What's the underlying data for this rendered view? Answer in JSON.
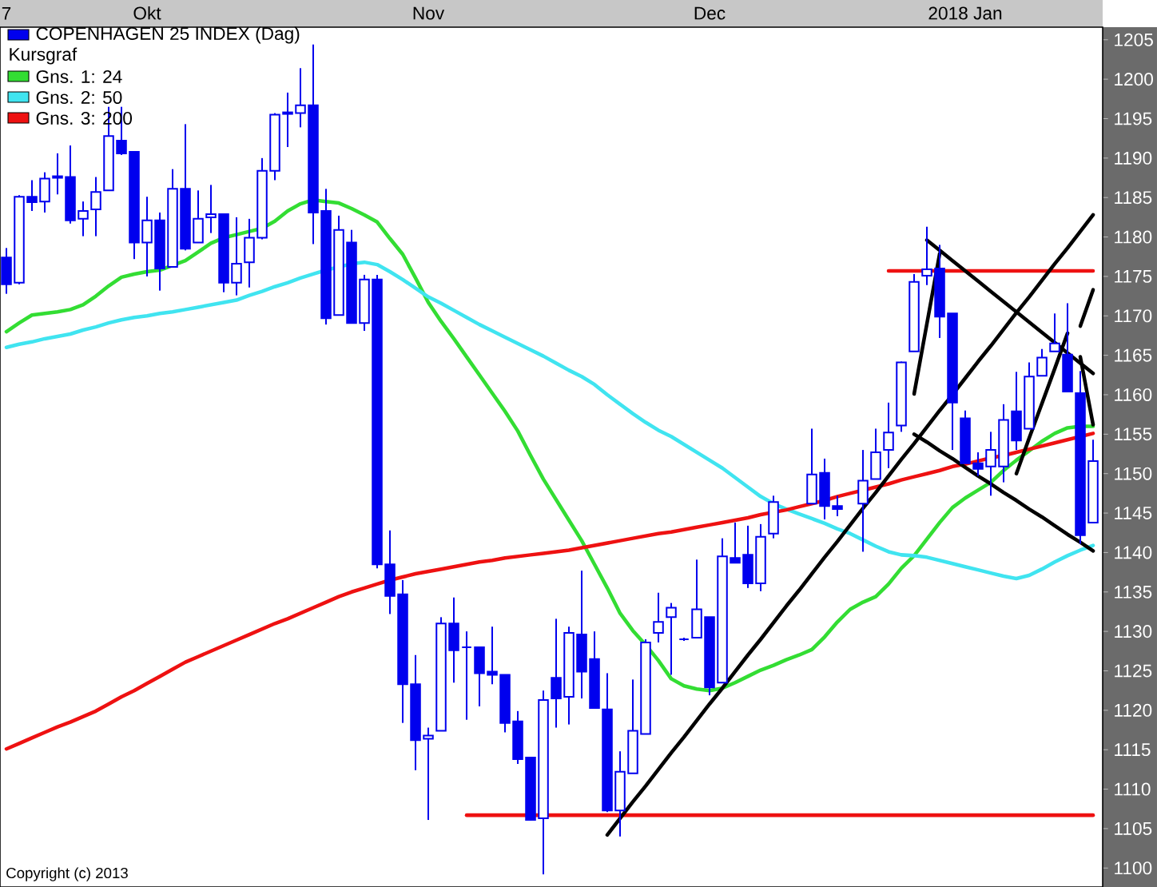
{
  "chart_data": {
    "type": "candlestick",
    "title": "COPENHAGEN 25 INDEX (Dag)",
    "legend_title": "Kursgraf",
    "color": "#0000ee",
    "legend": "top left",
    "annotations": [
      "Copyright (c) 2013"
    ],
    "ylim": [
      1097.6,
      1206.6
    ],
    "yticks": [
      1100,
      1105,
      1110,
      1115,
      1120,
      1125,
      1130,
      1135,
      1140,
      1145,
      1150,
      1155,
      1160,
      1165,
      1170,
      1175,
      1180,
      1185,
      1190,
      1195,
      1200,
      1205
    ],
    "categories": [
      "7",
      null,
      null,
      null,
      null,
      null,
      null,
      null,
      null,
      null,
      null,
      "Okt",
      null,
      null,
      null,
      null,
      null,
      null,
      null,
      null,
      null,
      null,
      null,
      null,
      null,
      null,
      null,
      null,
      null,
      null,
      null,
      null,
      null,
      "Nov",
      null,
      null,
      null,
      null,
      null,
      null,
      null,
      null,
      null,
      null,
      null,
      null,
      null,
      null,
      null,
      null,
      null,
      null,
      null,
      null,
      null,
      "Dec",
      null,
      null,
      null,
      null,
      null,
      null,
      null,
      null,
      null,
      null,
      null,
      null,
      null,
      null,
      null,
      null,
      null,
      null,
      null,
      "2018 Jan",
      null,
      null,
      null,
      null,
      null,
      null,
      null,
      null,
      null,
      null
    ],
    "ohlc": [
      [
        1177.4,
        1178.6,
        1172.8,
        1174.0
      ],
      [
        1174.2,
        1185.3,
        1174.0,
        1185.1
      ],
      [
        1185.1,
        1187.2,
        1183.3,
        1184.4
      ],
      [
        1184.5,
        1188.2,
        1183.1,
        1187.4
      ],
      [
        1187.5,
        1190.6,
        1185.4,
        1187.7
      ],
      [
        1187.6,
        1191.6,
        1181.7,
        1182.1
      ],
      [
        1182.3,
        1184.5,
        1180.1,
        1183.3
      ],
      [
        1183.5,
        1187.6,
        1180.1,
        1185.7
      ],
      [
        1185.9,
        1196.5,
        1185.9,
        1192.8
      ],
      [
        1192.2,
        1196.5,
        1190.4,
        1190.6
      ],
      [
        1190.8,
        1190.8,
        1177.2,
        1179.3
      ],
      [
        1179.3,
        1185.1,
        1175.0,
        1182.1
      ],
      [
        1182.1,
        1183.1,
        1173.2,
        1176.0
      ],
      [
        1176.2,
        1188.6,
        1176.2,
        1186.1
      ],
      [
        1186.1,
        1194.3,
        1178.3,
        1178.5
      ],
      [
        1179.3,
        1185.9,
        1179.3,
        1182.3
      ],
      [
        1182.5,
        1186.6,
        1180.5,
        1182.9
      ],
      [
        1182.9,
        1182.9,
        1173.0,
        1174.2
      ],
      [
        1174.2,
        1182.5,
        1172.6,
        1176.6
      ],
      [
        1176.8,
        1182.3,
        1173.6,
        1179.9
      ],
      [
        1179.9,
        1190.0,
        1179.7,
        1188.4
      ],
      [
        1188.4,
        1195.7,
        1187.2,
        1195.5
      ],
      [
        1195.6,
        1198.3,
        1191.4,
        1195.8
      ],
      [
        1195.7,
        1201.4,
        1193.9,
        1196.7
      ],
      [
        1196.7,
        1204.4,
        1179.1,
        1183.1
      ],
      [
        1183.3,
        1186.1,
        1168.9,
        1169.7
      ],
      [
        1170.1,
        1182.7,
        1170.1,
        1180.9
      ],
      [
        1179.3,
        1180.9,
        1169.1,
        1169.1
      ],
      [
        1169.1,
        1175.2,
        1168.1,
        1174.6
      ],
      [
        1174.6,
        1175.2,
        1138.0,
        1138.5
      ],
      [
        1138.5,
        1142.8,
        1132.2,
        1134.5
      ],
      [
        1134.7,
        1136.5,
        1118.4,
        1123.3
      ],
      [
        1123.3,
        1127.0,
        1112.4,
        1116.2
      ],
      [
        1116.4,
        1117.8,
        1106.1,
        1116.8
      ],
      [
        1117.4,
        1131.8,
        1117.4,
        1131.0
      ],
      [
        1131.0,
        1134.3,
        1123.5,
        1127.6
      ],
      [
        1128.0,
        1130.0,
        1118.8,
        1128.0
      ],
      [
        1128.0,
        1128.0,
        1120.5,
        1124.7
      ],
      [
        1124.9,
        1130.6,
        1123.3,
        1124.5
      ],
      [
        1124.5,
        1124.5,
        1117.2,
        1118.4
      ],
      [
        1118.6,
        1119.9,
        1113.2,
        1113.8
      ],
      [
        1114.0,
        1114.0,
        1106.0,
        1106.1
      ],
      [
        1106.3,
        1122.5,
        1099.2,
        1121.3
      ],
      [
        1124.1,
        1131.6,
        1117.8,
        1121.5
      ],
      [
        1121.7,
        1130.6,
        1118.2,
        1129.8
      ],
      [
        1129.6,
        1137.7,
        1121.5,
        1124.9
      ],
      [
        1126.5,
        1130.0,
        1120.3,
        1120.3
      ],
      [
        1120.1,
        1124.7,
        1107.1,
        1107.3
      ],
      [
        1107.3,
        1114.8,
        1104.0,
        1112.2
      ],
      [
        1112.0,
        1123.9,
        1112.0,
        1117.4
      ],
      [
        1117.0,
        1129.0,
        1117.0,
        1128.6
      ],
      [
        1129.8,
        1134.9,
        1128.6,
        1131.2
      ],
      [
        1131.8,
        1133.6,
        1124.5,
        1133.0
      ],
      [
        1129.0,
        1129.2,
        1128.8,
        1129.0
      ],
      [
        1129.2,
        1139.1,
        1129.2,
        1132.8
      ],
      [
        1131.8,
        1131.8,
        1121.9,
        1122.9
      ],
      [
        1123.5,
        1141.8,
        1123.5,
        1139.5
      ],
      [
        1139.3,
        1143.8,
        1138.7,
        1138.7
      ],
      [
        1139.7,
        1143.4,
        1135.5,
        1136.1
      ],
      [
        1136.1,
        1143.6,
        1135.1,
        1142.0
      ],
      [
        1142.4,
        1147.2,
        1141.8,
        1146.4
      ],
      null,
      null,
      [
        1146.2,
        1155.7,
        1146.2,
        1149.9
      ],
      [
        1150.1,
        1151.9,
        1144.2,
        1145.9
      ],
      [
        1145.9,
        1147.2,
        1144.6,
        1145.5
      ],
      null,
      [
        1146.2,
        1153.0,
        1140.1,
        1149.1
      ],
      [
        1149.3,
        1155.7,
        1149.3,
        1152.7
      ],
      [
        1153.0,
        1159.0,
        1150.7,
        1155.2
      ],
      [
        1156.1,
        1164.2,
        1155.3,
        1164.1
      ],
      [
        1165.5,
        1175.3,
        1165.5,
        1174.3
      ],
      [
        1175.1,
        1181.3,
        1173.9,
        1175.9
      ],
      [
        1176.0,
        1179.0,
        1167.2,
        1169.9
      ],
      [
        1170.3,
        1170.3,
        1153.0,
        1159.0
      ],
      [
        1157.0,
        1158.0,
        1151.3,
        1151.3
      ],
      [
        1151.3,
        1152.7,
        1149.7,
        1150.6
      ],
      [
        1150.9,
        1155.3,
        1147.2,
        1153.0
      ],
      [
        1150.9,
        1158.8,
        1148.9,
        1156.8
      ],
      [
        1157.9,
        1162.9,
        1153.0,
        1154.2
      ],
      [
        1155.7,
        1164.1,
        1155.7,
        1162.3
      ],
      [
        1162.4,
        1165.8,
        1162.4,
        1164.7
      ],
      [
        1165.5,
        1170.3,
        1165.5,
        1166.5
      ],
      [
        1165.1,
        1171.6,
        1160.4,
        1160.4
      ],
      [
        1160.2,
        1163.0,
        1141.1,
        1142.2
      ],
      [
        1143.8,
        1154.3,
        1143.8,
        1151.6
      ]
    ],
    "series": [
      {
        "type": "line",
        "name": "Gns. 1: 24",
        "color": "#33dd33",
        "values": [
          1168.0,
          1169.1,
          1170.1,
          1170.3,
          1170.5,
          1170.8,
          1171.4,
          1172.5,
          1173.8,
          1174.9,
          1175.3,
          1175.6,
          1175.8,
          1176.4,
          1177.0,
          1178.1,
          1179.2,
          1179.9,
          1180.3,
          1180.7,
          1181.1,
          1182.0,
          1183.3,
          1184.2,
          1184.7,
          1184.5,
          1184.3,
          1183.6,
          1182.8,
          1181.9,
          1179.8,
          1177.8,
          1174.8,
          1171.7,
          1169.3,
          1167.1,
          1164.8,
          1162.5,
          1160.2,
          1157.9,
          1155.4,
          1152.3,
          1149.3,
          1146.7,
          1144.1,
          1141.5,
          1138.5,
          1135.5,
          1132.3,
          1130.1,
          1128.3,
          1126.3,
          1124.0,
          1123.1,
          1122.7,
          1122.5,
          1122.8,
          1123.5,
          1124.3,
          1125.1,
          1125.7,
          1126.4,
          1127.0,
          1127.7,
          1129.3,
          1131.2,
          1132.8,
          1133.7,
          1134.4,
          1136.0,
          1138.0,
          1139.6,
          1141.7,
          1143.8,
          1145.7,
          1146.9,
          1147.9,
          1148.9,
          1150.4,
          1151.7,
          1152.9,
          1154.1,
          1155.1,
          1155.8,
          1156.0,
          1156.0
        ]
      },
      {
        "type": "line",
        "name": "Gns. 2: 50",
        "color": "#40e4f0",
        "values": [
          1166.0,
          1166.4,
          1166.7,
          1167.1,
          1167.4,
          1167.7,
          1168.2,
          1168.6,
          1169.1,
          1169.5,
          1169.8,
          1170.0,
          1170.3,
          1170.5,
          1170.8,
          1171.1,
          1171.4,
          1171.7,
          1172.0,
          1172.6,
          1173.1,
          1173.7,
          1174.2,
          1174.8,
          1175.3,
          1175.8,
          1176.2,
          1176.6,
          1176.8,
          1176.5,
          1175.6,
          1174.6,
          1173.5,
          1172.4,
          1171.6,
          1170.7,
          1169.8,
          1168.9,
          1168.1,
          1167.3,
          1166.5,
          1165.7,
          1164.9,
          1164.0,
          1163.1,
          1162.3,
          1161.3,
          1160.0,
          1158.8,
          1157.6,
          1156.5,
          1155.5,
          1154.7,
          1153.7,
          1152.7,
          1151.7,
          1150.7,
          1149.5,
          1148.3,
          1147.1,
          1146.2,
          1145.5,
          1144.9,
          1144.3,
          1143.7,
          1143.0,
          1142.4,
          1141.6,
          1140.8,
          1140.1,
          1139.7,
          1139.6,
          1139.4,
          1139.0,
          1138.6,
          1138.2,
          1137.8,
          1137.4,
          1137.0,
          1136.7,
          1137.1,
          1137.9,
          1138.8,
          1139.6,
          1140.3,
          1140.9
        ]
      },
      {
        "type": "line",
        "name": "Gns. 3: 200",
        "color": "#ee1111",
        "values": [
          1115.1,
          1115.8,
          1116.5,
          1117.2,
          1117.9,
          1118.5,
          1119.2,
          1119.9,
          1120.8,
          1121.7,
          1122.5,
          1123.4,
          1124.3,
          1125.2,
          1126.1,
          1126.8,
          1127.5,
          1128.2,
          1128.9,
          1129.6,
          1130.3,
          1131.0,
          1131.6,
          1132.3,
          1133.0,
          1133.7,
          1134.4,
          1135.0,
          1135.5,
          1136.0,
          1136.5,
          1136.9,
          1137.3,
          1137.6,
          1137.9,
          1138.2,
          1138.5,
          1138.8,
          1139.0,
          1139.3,
          1139.5,
          1139.7,
          1139.9,
          1140.1,
          1140.3,
          1140.6,
          1140.9,
          1141.2,
          1141.5,
          1141.8,
          1142.1,
          1142.4,
          1142.6,
          1142.9,
          1143.2,
          1143.5,
          1143.8,
          1144.1,
          1144.4,
          1144.8,
          1145.1,
          1145.4,
          1145.8,
          1146.2,
          1146.6,
          1147.1,
          1147.5,
          1147.9,
          1148.3,
          1148.7,
          1149.2,
          1149.6,
          1150.0,
          1150.4,
          1150.9,
          1151.2,
          1151.6,
          1152.0,
          1152.3,
          1152.7,
          1153.1,
          1153.5,
          1153.9,
          1154.3,
          1154.7,
          1155.1
        ]
      },
      {
        "type": "line",
        "color": "#ee1111",
        "values": [
          null,
          null,
          null,
          null,
          null,
          null,
          null,
          null,
          null,
          null,
          null,
          null,
          null,
          null,
          null,
          null,
          null,
          null,
          null,
          null,
          null,
          null,
          null,
          null,
          null,
          null,
          null,
          null,
          null,
          null,
          null,
          null,
          null,
          null,
          null,
          null,
          1106.7,
          1106.7,
          1106.7,
          1106.7,
          1106.7,
          1106.7,
          1106.7,
          1106.7,
          1106.7,
          1106.7,
          1106.7,
          1106.7,
          1106.7,
          1106.7,
          1106.7,
          1106.7,
          1106.7,
          1106.7,
          1106.7,
          1106.7,
          1106.7,
          1106.7,
          1106.7,
          1106.7,
          1106.7,
          1106.7,
          1106.7,
          1106.7,
          1106.7,
          1106.7,
          1106.7,
          1106.7,
          1106.7,
          1106.7,
          1106.7,
          1106.7,
          1106.7,
          1106.7,
          1106.7,
          1106.7,
          1106.7,
          1106.7,
          1106.7,
          1106.7,
          1106.7,
          1106.7,
          1106.7,
          1106.7,
          1106.7,
          1106.7
        ]
      },
      {
        "type": "line",
        "color": "#ee1111",
        "values": [
          null,
          null,
          null,
          null,
          null,
          null,
          null,
          null,
          null,
          null,
          null,
          null,
          null,
          null,
          null,
          null,
          null,
          null,
          null,
          null,
          null,
          null,
          null,
          null,
          null,
          null,
          null,
          null,
          null,
          null,
          null,
          null,
          null,
          null,
          null,
          null,
          null,
          null,
          null,
          null,
          null,
          null,
          null,
          null,
          null,
          null,
          null,
          null,
          null,
          null,
          null,
          null,
          null,
          null,
          null,
          null,
          null,
          null,
          null,
          null,
          null,
          null,
          null,
          null,
          null,
          null,
          null,
          null,
          null,
          1175.7,
          1175.7,
          1175.7,
          1175.7,
          1175.7,
          1175.7,
          1175.7,
          1175.7,
          1175.7,
          1175.7,
          1175.7,
          1175.7,
          1175.7,
          1175.7,
          1175.7,
          1175.7,
          1175.7
        ]
      },
      {
        "type": "line",
        "color": "#000000",
        "values": [
          null,
          null,
          null,
          null,
          null,
          null,
          null,
          null,
          null,
          null,
          null,
          null,
          null,
          null,
          null,
          null,
          null,
          null,
          null,
          null,
          null,
          null,
          null,
          null,
          null,
          null,
          null,
          null,
          null,
          null,
          null,
          null,
          null,
          null,
          null,
          null,
          null,
          null,
          null,
          null,
          null,
          null,
          null,
          null,
          null,
          null,
          null,
          1104.2,
          1106.3,
          1108.4,
          1110.4,
          1112.5,
          1114.6,
          1116.6,
          1118.7,
          1120.8,
          1122.8,
          1124.9,
          1127.0,
          1129.0,
          1131.1,
          1133.2,
          1135.2,
          1137.3,
          1139.4,
          1141.4,
          1143.5,
          1145.6,
          1147.6,
          1149.7,
          1151.8,
          1153.8,
          1155.9,
          1158.0,
          1160.0,
          1162.1,
          1164.2,
          1166.2,
          1168.3,
          1170.4,
          1172.4,
          1174.5,
          1176.6,
          1178.6,
          1180.7,
          1182.8
        ]
      },
      {
        "type": "line",
        "color": "#000000",
        "values": [
          null,
          null,
          null,
          null,
          null,
          null,
          null,
          null,
          null,
          null,
          null,
          null,
          null,
          null,
          null,
          null,
          null,
          null,
          null,
          null,
          null,
          null,
          null,
          null,
          null,
          null,
          null,
          null,
          null,
          null,
          null,
          null,
          null,
          null,
          null,
          null,
          null,
          null,
          null,
          null,
          null,
          null,
          null,
          null,
          null,
          null,
          null,
          null,
          null,
          null,
          null,
          null,
          null,
          null,
          null,
          null,
          null,
          null,
          null,
          null,
          null,
          null,
          null,
          null,
          null,
          null,
          null,
          null,
          null,
          null,
          null,
          1160.1,
          1169.0,
          1177.9,
          null,
          null,
          null,
          null,
          null,
          null,
          null,
          null,
          null,
          null,
          null,
          null
        ]
      },
      {
        "type": "line",
        "color": "#000000",
        "values": [
          null,
          null,
          null,
          null,
          null,
          null,
          null,
          null,
          null,
          null,
          null,
          null,
          null,
          null,
          null,
          null,
          null,
          null,
          null,
          null,
          null,
          null,
          null,
          null,
          null,
          null,
          null,
          null,
          null,
          null,
          null,
          null,
          null,
          null,
          null,
          null,
          null,
          null,
          null,
          null,
          null,
          null,
          null,
          null,
          null,
          null,
          null,
          null,
          null,
          null,
          null,
          null,
          null,
          null,
          null,
          null,
          null,
          null,
          null,
          null,
          null,
          null,
          null,
          null,
          null,
          null,
          null,
          null,
          null,
          null,
          null,
          null,
          1179.6,
          1178.3,
          1177.0,
          1175.7,
          1174.4,
          1173.1,
          1171.8,
          1170.5,
          1169.2,
          1167.9,
          1166.6,
          1165.3,
          1164.0,
          1162.7
        ]
      },
      {
        "type": "line",
        "color": "#000000",
        "values": [
          null,
          null,
          null,
          null,
          null,
          null,
          null,
          null,
          null,
          null,
          null,
          null,
          null,
          null,
          null,
          null,
          null,
          null,
          null,
          null,
          null,
          null,
          null,
          null,
          null,
          null,
          null,
          null,
          null,
          null,
          null,
          null,
          null,
          null,
          null,
          null,
          null,
          null,
          null,
          null,
          null,
          null,
          null,
          null,
          null,
          null,
          null,
          null,
          null,
          null,
          null,
          null,
          null,
          null,
          null,
          null,
          null,
          null,
          null,
          null,
          null,
          null,
          null,
          null,
          null,
          null,
          null,
          null,
          null,
          null,
          null,
          1155.0,
          1154.0,
          1152.9,
          1151.9,
          1150.8,
          1149.7,
          1148.7,
          1147.6,
          1146.6,
          1145.5,
          1144.5,
          1143.4,
          1142.3,
          1141.3,
          1140.2
        ]
      },
      {
        "type": "line",
        "color": "#000000",
        "values": [
          null,
          null,
          null,
          null,
          null,
          null,
          null,
          null,
          null,
          null,
          null,
          null,
          null,
          null,
          null,
          null,
          null,
          null,
          null,
          null,
          null,
          null,
          null,
          null,
          null,
          null,
          null,
          null,
          null,
          null,
          null,
          null,
          null,
          null,
          null,
          null,
          null,
          null,
          null,
          null,
          null,
          null,
          null,
          null,
          null,
          null,
          null,
          null,
          null,
          null,
          null,
          null,
          null,
          null,
          null,
          null,
          null,
          null,
          null,
          null,
          null,
          null,
          null,
          null,
          null,
          null,
          null,
          null,
          null,
          null,
          null,
          null,
          null,
          null,
          null,
          null,
          null,
          null,
          null,
          1150.0,
          1154.5,
          1158.9,
          1163.3,
          1167.8,
          null,
          null
        ]
      },
      {
        "type": "line",
        "color": "#000000",
        "values": [
          null,
          null,
          null,
          null,
          null,
          null,
          null,
          null,
          null,
          null,
          null,
          null,
          null,
          null,
          null,
          null,
          null,
          null,
          null,
          null,
          null,
          null,
          null,
          null,
          null,
          null,
          null,
          null,
          null,
          null,
          null,
          null,
          null,
          null,
          null,
          null,
          null,
          null,
          null,
          null,
          null,
          null,
          null,
          null,
          null,
          null,
          null,
          null,
          null,
          null,
          null,
          null,
          null,
          null,
          null,
          null,
          null,
          null,
          null,
          null,
          null,
          null,
          null,
          null,
          null,
          null,
          null,
          null,
          null,
          null,
          null,
          null,
          null,
          null,
          null,
          null,
          null,
          null,
          null,
          null,
          null,
          null,
          null,
          null,
          1168.7,
          1173.3
        ]
      },
      {
        "type": "line",
        "color": "#000000",
        "values": [
          null,
          null,
          null,
          null,
          null,
          null,
          null,
          null,
          null,
          null,
          null,
          null,
          null,
          null,
          null,
          null,
          null,
          null,
          null,
          null,
          null,
          null,
          null,
          null,
          null,
          null,
          null,
          null,
          null,
          null,
          null,
          null,
          null,
          null,
          null,
          null,
          null,
          null,
          null,
          null,
          null,
          null,
          null,
          null,
          null,
          null,
          null,
          null,
          null,
          null,
          null,
          null,
          null,
          null,
          null,
          null,
          null,
          null,
          null,
          null,
          null,
          null,
          null,
          null,
          null,
          null,
          null,
          null,
          null,
          null,
          null,
          null,
          null,
          null,
          null,
          null,
          null,
          null,
          null,
          null,
          null,
          null,
          null,
          null,
          1164.8,
          1156.2
        ]
      }
    ]
  }
}
